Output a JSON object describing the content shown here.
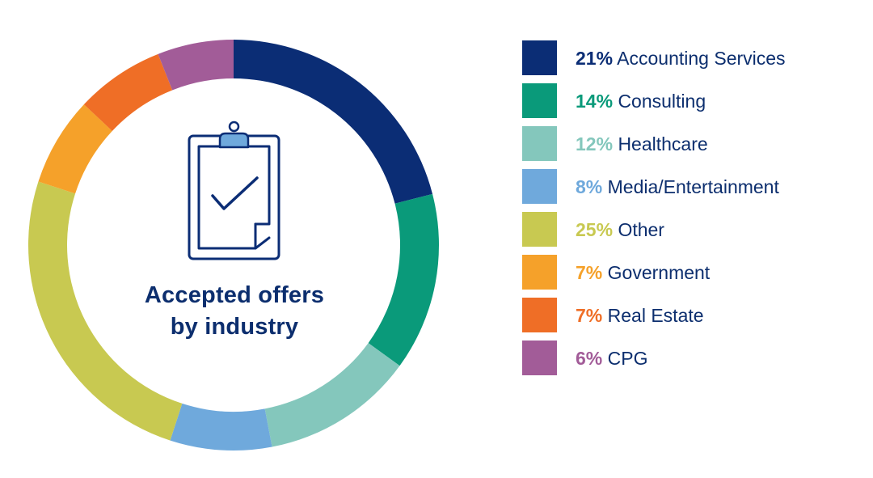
{
  "chart_data": {
    "type": "pie",
    "variant": "donut",
    "title_lines": [
      "Accepted offers",
      "by industry"
    ],
    "categories": [
      "Accounting Services",
      "Consulting",
      "Healthcare",
      "Media/Entertainment",
      "Other",
      "Government",
      "Real Estate",
      "CPG"
    ],
    "values": [
      21,
      14,
      12,
      8,
      25,
      7,
      7,
      6
    ],
    "labels": [
      "21%",
      "14%",
      "12%",
      "8%",
      "25%",
      "7%",
      "7%",
      "6%"
    ],
    "colors": [
      "#0b2d75",
      "#0a9a7a",
      "#84c7bc",
      "#6fa9dc",
      "#c8c951",
      "#f5a12a",
      "#ef6e26",
      "#a25c98"
    ],
    "legend_position": "right",
    "start": "top",
    "direction": "clockwise"
  },
  "center_icon": "clipboard-check-icon",
  "colors": {
    "text": "#0c2e6e",
    "icon_stroke": "#0b2d75",
    "icon_clip": "#6fa9dc"
  }
}
